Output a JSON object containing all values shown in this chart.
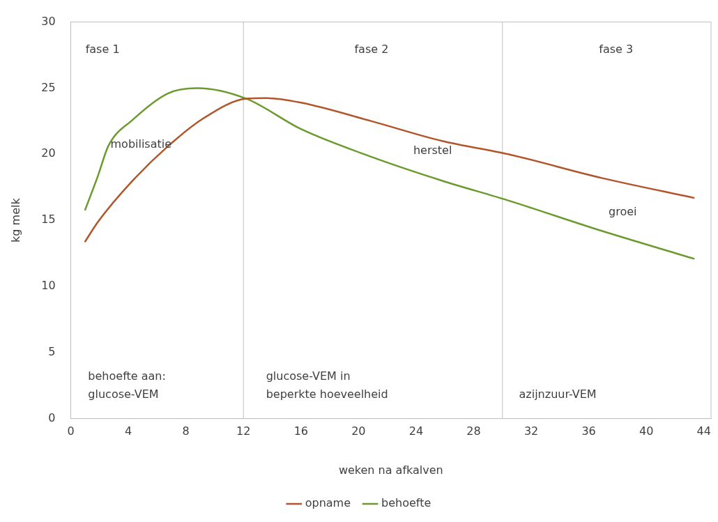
{
  "chart_data": {
    "type": "line",
    "xlabel": "weken na afkalven",
    "ylabel": "kg melk",
    "xlim": [
      0,
      44.5
    ],
    "xticks": [
      0,
      4,
      8,
      12,
      16,
      20,
      24,
      28,
      32,
      36,
      40,
      44
    ],
    "ylim": [
      0,
      30
    ],
    "yticks": [
      0,
      5,
      10,
      15,
      20,
      25,
      30
    ],
    "grid": false,
    "legend": "bottom",
    "marker": "none",
    "line_style": "solid",
    "series": [
      {
        "name": "opname",
        "color": "#b0562a",
        "x": [
          1.0,
          1.9,
          4.3,
          6.75,
          9.2,
          12.2,
          13.6,
          16.0,
          20.9,
          25.8,
          30.4,
          36.9,
          43.3
        ],
        "values": [
          13.4,
          14.9,
          18.0,
          20.6,
          22.7,
          24.2,
          24.25,
          23.9,
          22.5,
          21.0,
          20.0,
          18.2,
          16.7
        ]
      },
      {
        "name": "behoefte",
        "color": "#6b9a2f",
        "x": [
          1.0,
          1.9,
          2.6,
          4.3,
          6.75,
          8.8,
          12.2,
          16.0,
          20.9,
          25.8,
          30.4,
          36.9,
          43.3
        ],
        "values": [
          15.8,
          18.4,
          20.6,
          22.6,
          24.6,
          25.0,
          24.2,
          21.9,
          19.8,
          18.0,
          16.5,
          14.2,
          12.1
        ]
      }
    ],
    "ref_lines": [
      {
        "axis": "x",
        "value": 12,
        "color": "#bfbfbf"
      },
      {
        "axis": "x",
        "value": 30,
        "color": "#bfbfbf"
      }
    ],
    "annotations": [
      "fase 1",
      "fase 2",
      "fase 3",
      "mobilisatie",
      "herstel",
      "groei",
      "behoefte aan:\nglucose-VEM",
      "glucose-VEM in\nbeperkte hoeveelheid",
      "azijnzuur-VEM"
    ]
  }
}
